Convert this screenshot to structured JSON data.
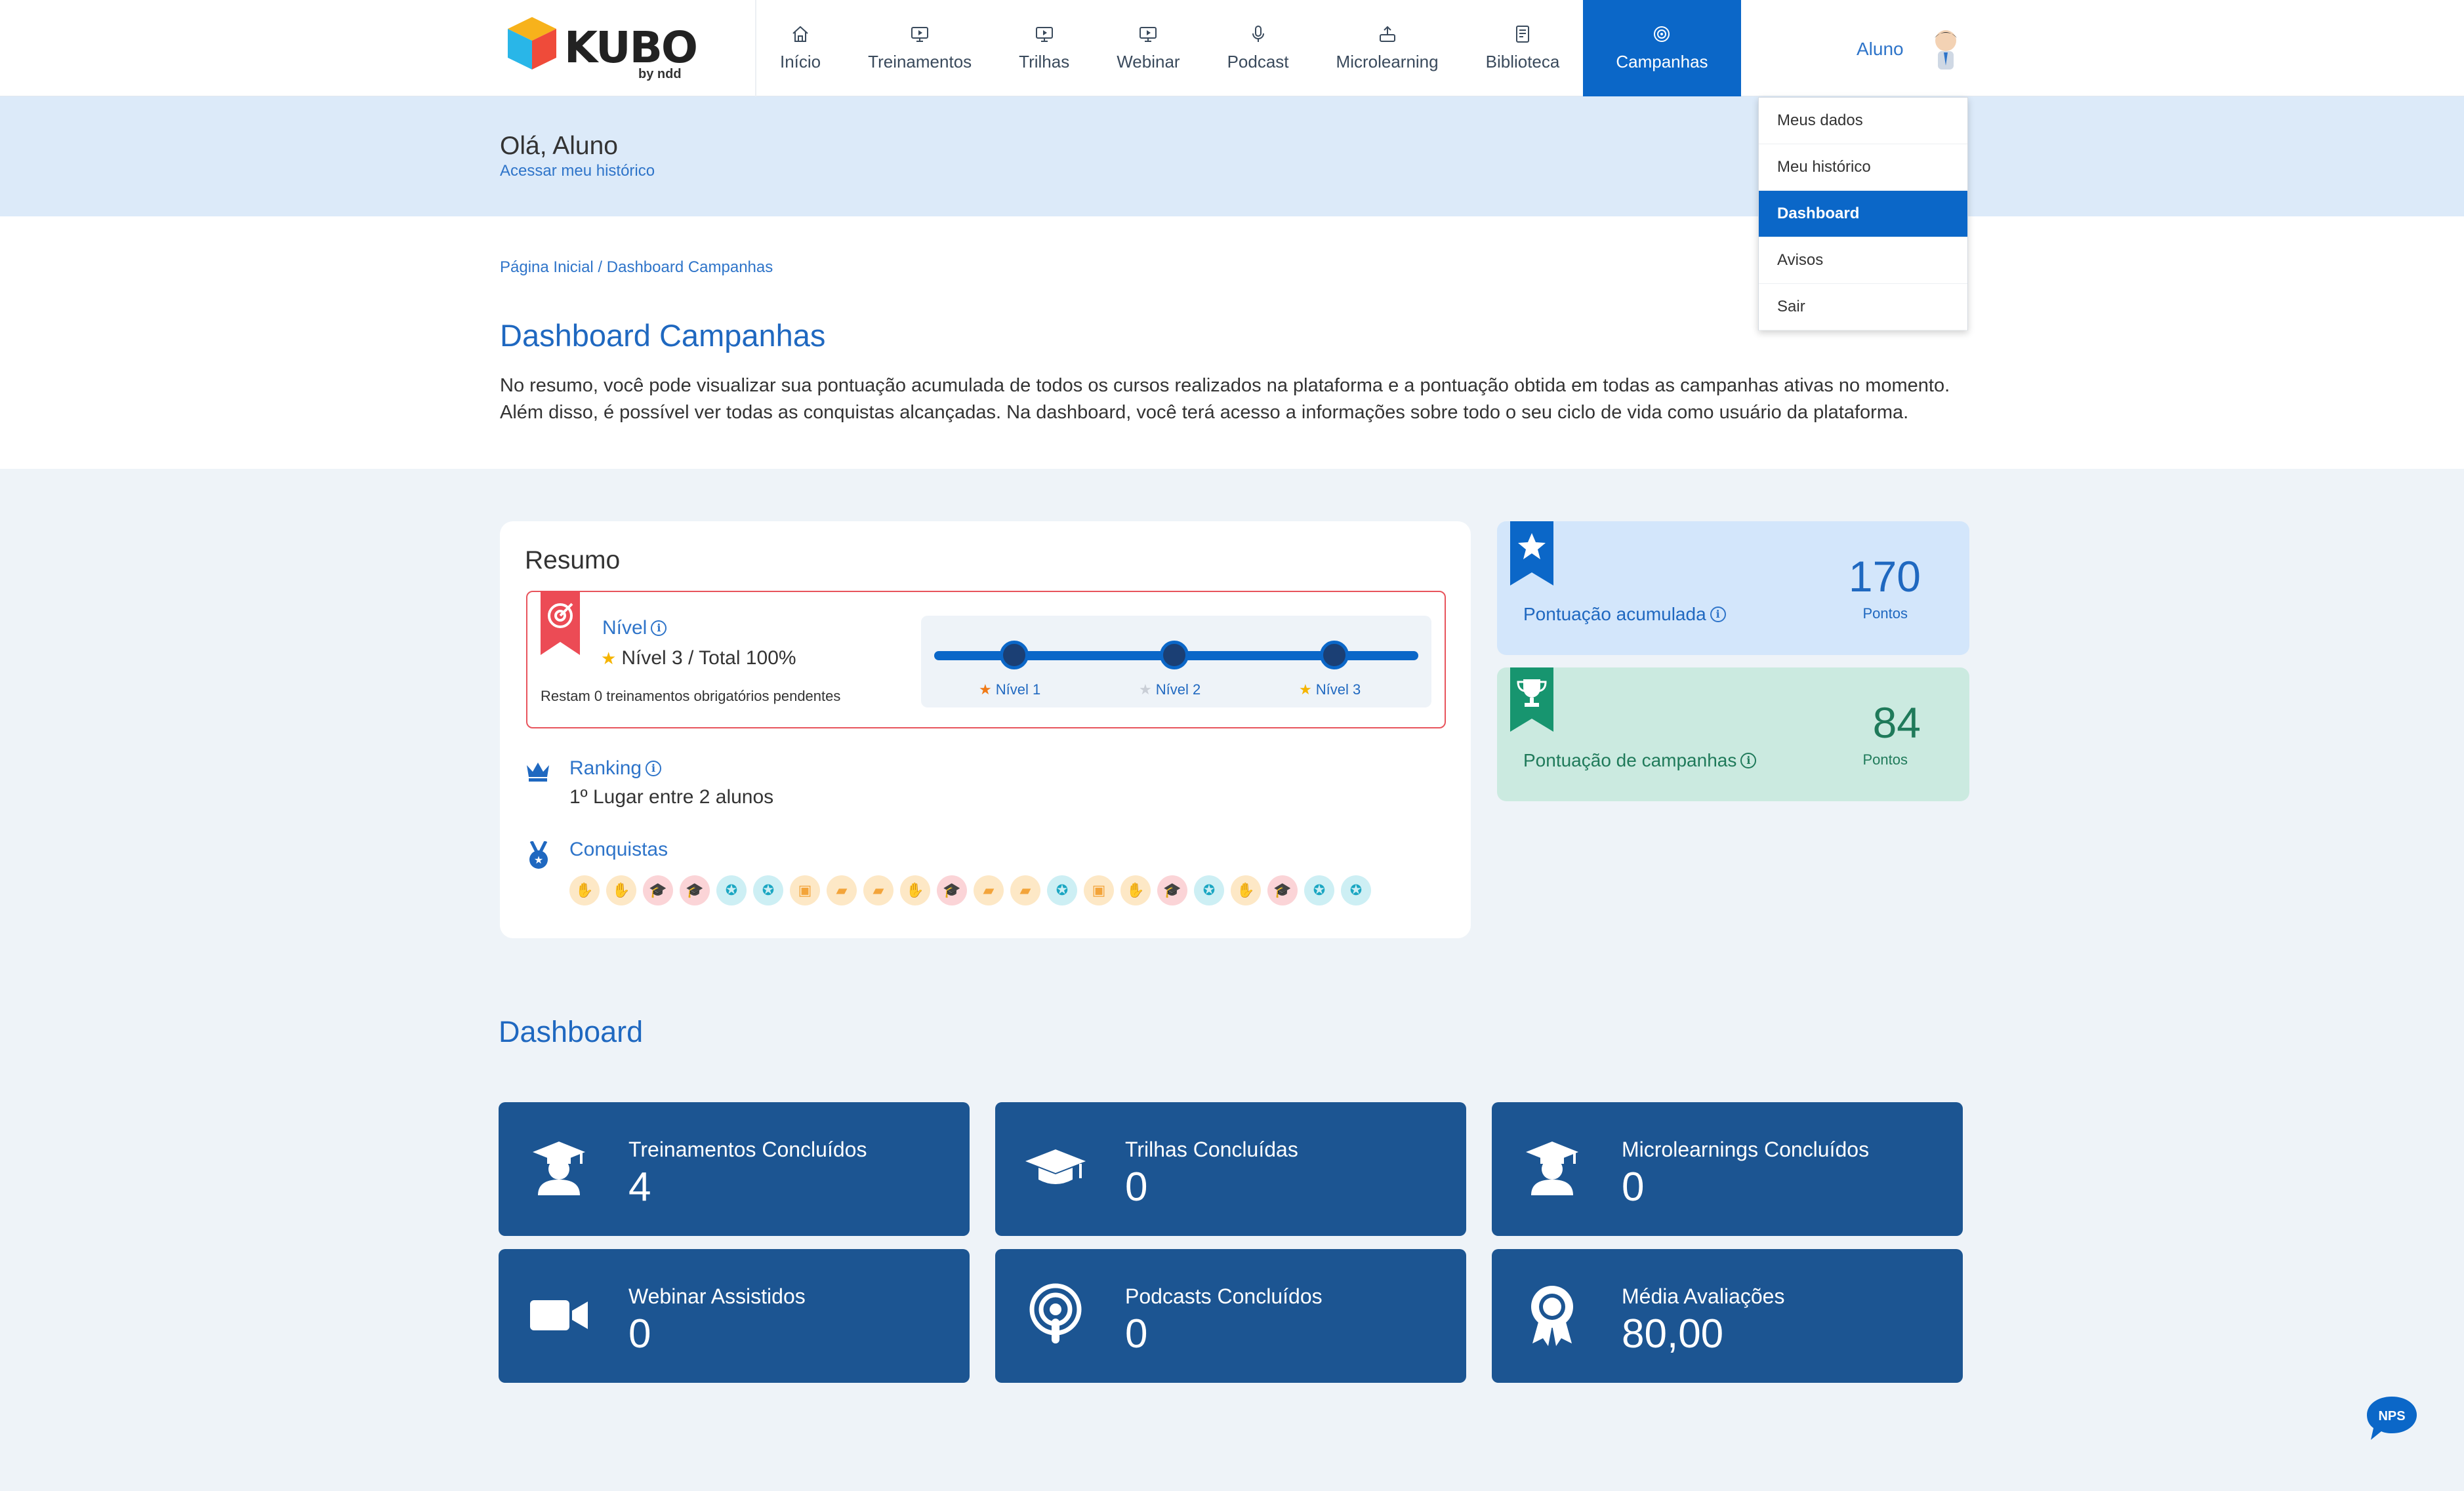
{
  "header": {
    "logo_text": "KUBO",
    "logo_sub": "by ndd",
    "nav": [
      {
        "label": "Início",
        "icon": "home-icon"
      },
      {
        "label": "Treinamentos",
        "icon": "monitor-play-icon"
      },
      {
        "label": "Trilhas",
        "icon": "monitor-play-icon"
      },
      {
        "label": "Webinar",
        "icon": "monitor-play-icon"
      },
      {
        "label": "Podcast",
        "icon": "microphone-icon"
      },
      {
        "label": "Microlearning",
        "icon": "upload-box-icon"
      },
      {
        "label": "Biblioteca",
        "icon": "book-icon"
      },
      {
        "label": "Campanhas",
        "icon": "target-icon"
      }
    ],
    "user_name": "Aluno"
  },
  "dropdown": {
    "items": [
      "Meus dados",
      "Meu histórico",
      "Dashboard",
      "Avisos",
      "Sair"
    ],
    "active": "Dashboard"
  },
  "greeting": {
    "hello": "Olá, Aluno",
    "history_link": "Acessar meu histórico"
  },
  "breadcrumb": "Página Inicial / Dashboard Campanhas",
  "page_title": "Dashboard Campanhas",
  "description": "No resumo, você pode visualizar sua pontuação acumulada de todos os cursos realizados na plataforma e a pontuação obtida em todas as campanhas ativas no momento. Além disso, é possível ver todas as conquistas alcançadas. Na dashboard, você terá acesso a informações sobre todo o seu ciclo de vida como usuário da plataforma.",
  "resumo": {
    "title": "Resumo",
    "nivel_label": "Nível",
    "nivel_value": "Nível 3 / Total 100%",
    "nivel_sub": "Restam 0 treinamentos obrigatórios pendentes",
    "levels": [
      "Nível 1",
      "Nível 2",
      "Nível 3"
    ],
    "ranking_label": "Ranking",
    "ranking_value": "1º Lugar entre 2 alunos",
    "conquistas_label": "Conquistas"
  },
  "points": {
    "acumulada": {
      "label": "Pontuação acumulada",
      "value": "170",
      "unit": "Pontos"
    },
    "campanhas": {
      "label": "Pontuação de campanhas",
      "value": "84",
      "unit": "Pontos"
    }
  },
  "dashboard": {
    "title": "Dashboard",
    "tiles": [
      {
        "label": "Treinamentos Concluídos",
        "value": "4"
      },
      {
        "label": "Trilhas Concluídas",
        "value": "0"
      },
      {
        "label": "Microlearnings Concluídos",
        "value": "0"
      },
      {
        "label": "Webinar Assistidos",
        "value": "0"
      },
      {
        "label": "Podcasts Concluídos",
        "value": "0"
      },
      {
        "label": "Média Avaliações",
        "value": "80,00"
      }
    ]
  },
  "nps_label": "NPS"
}
